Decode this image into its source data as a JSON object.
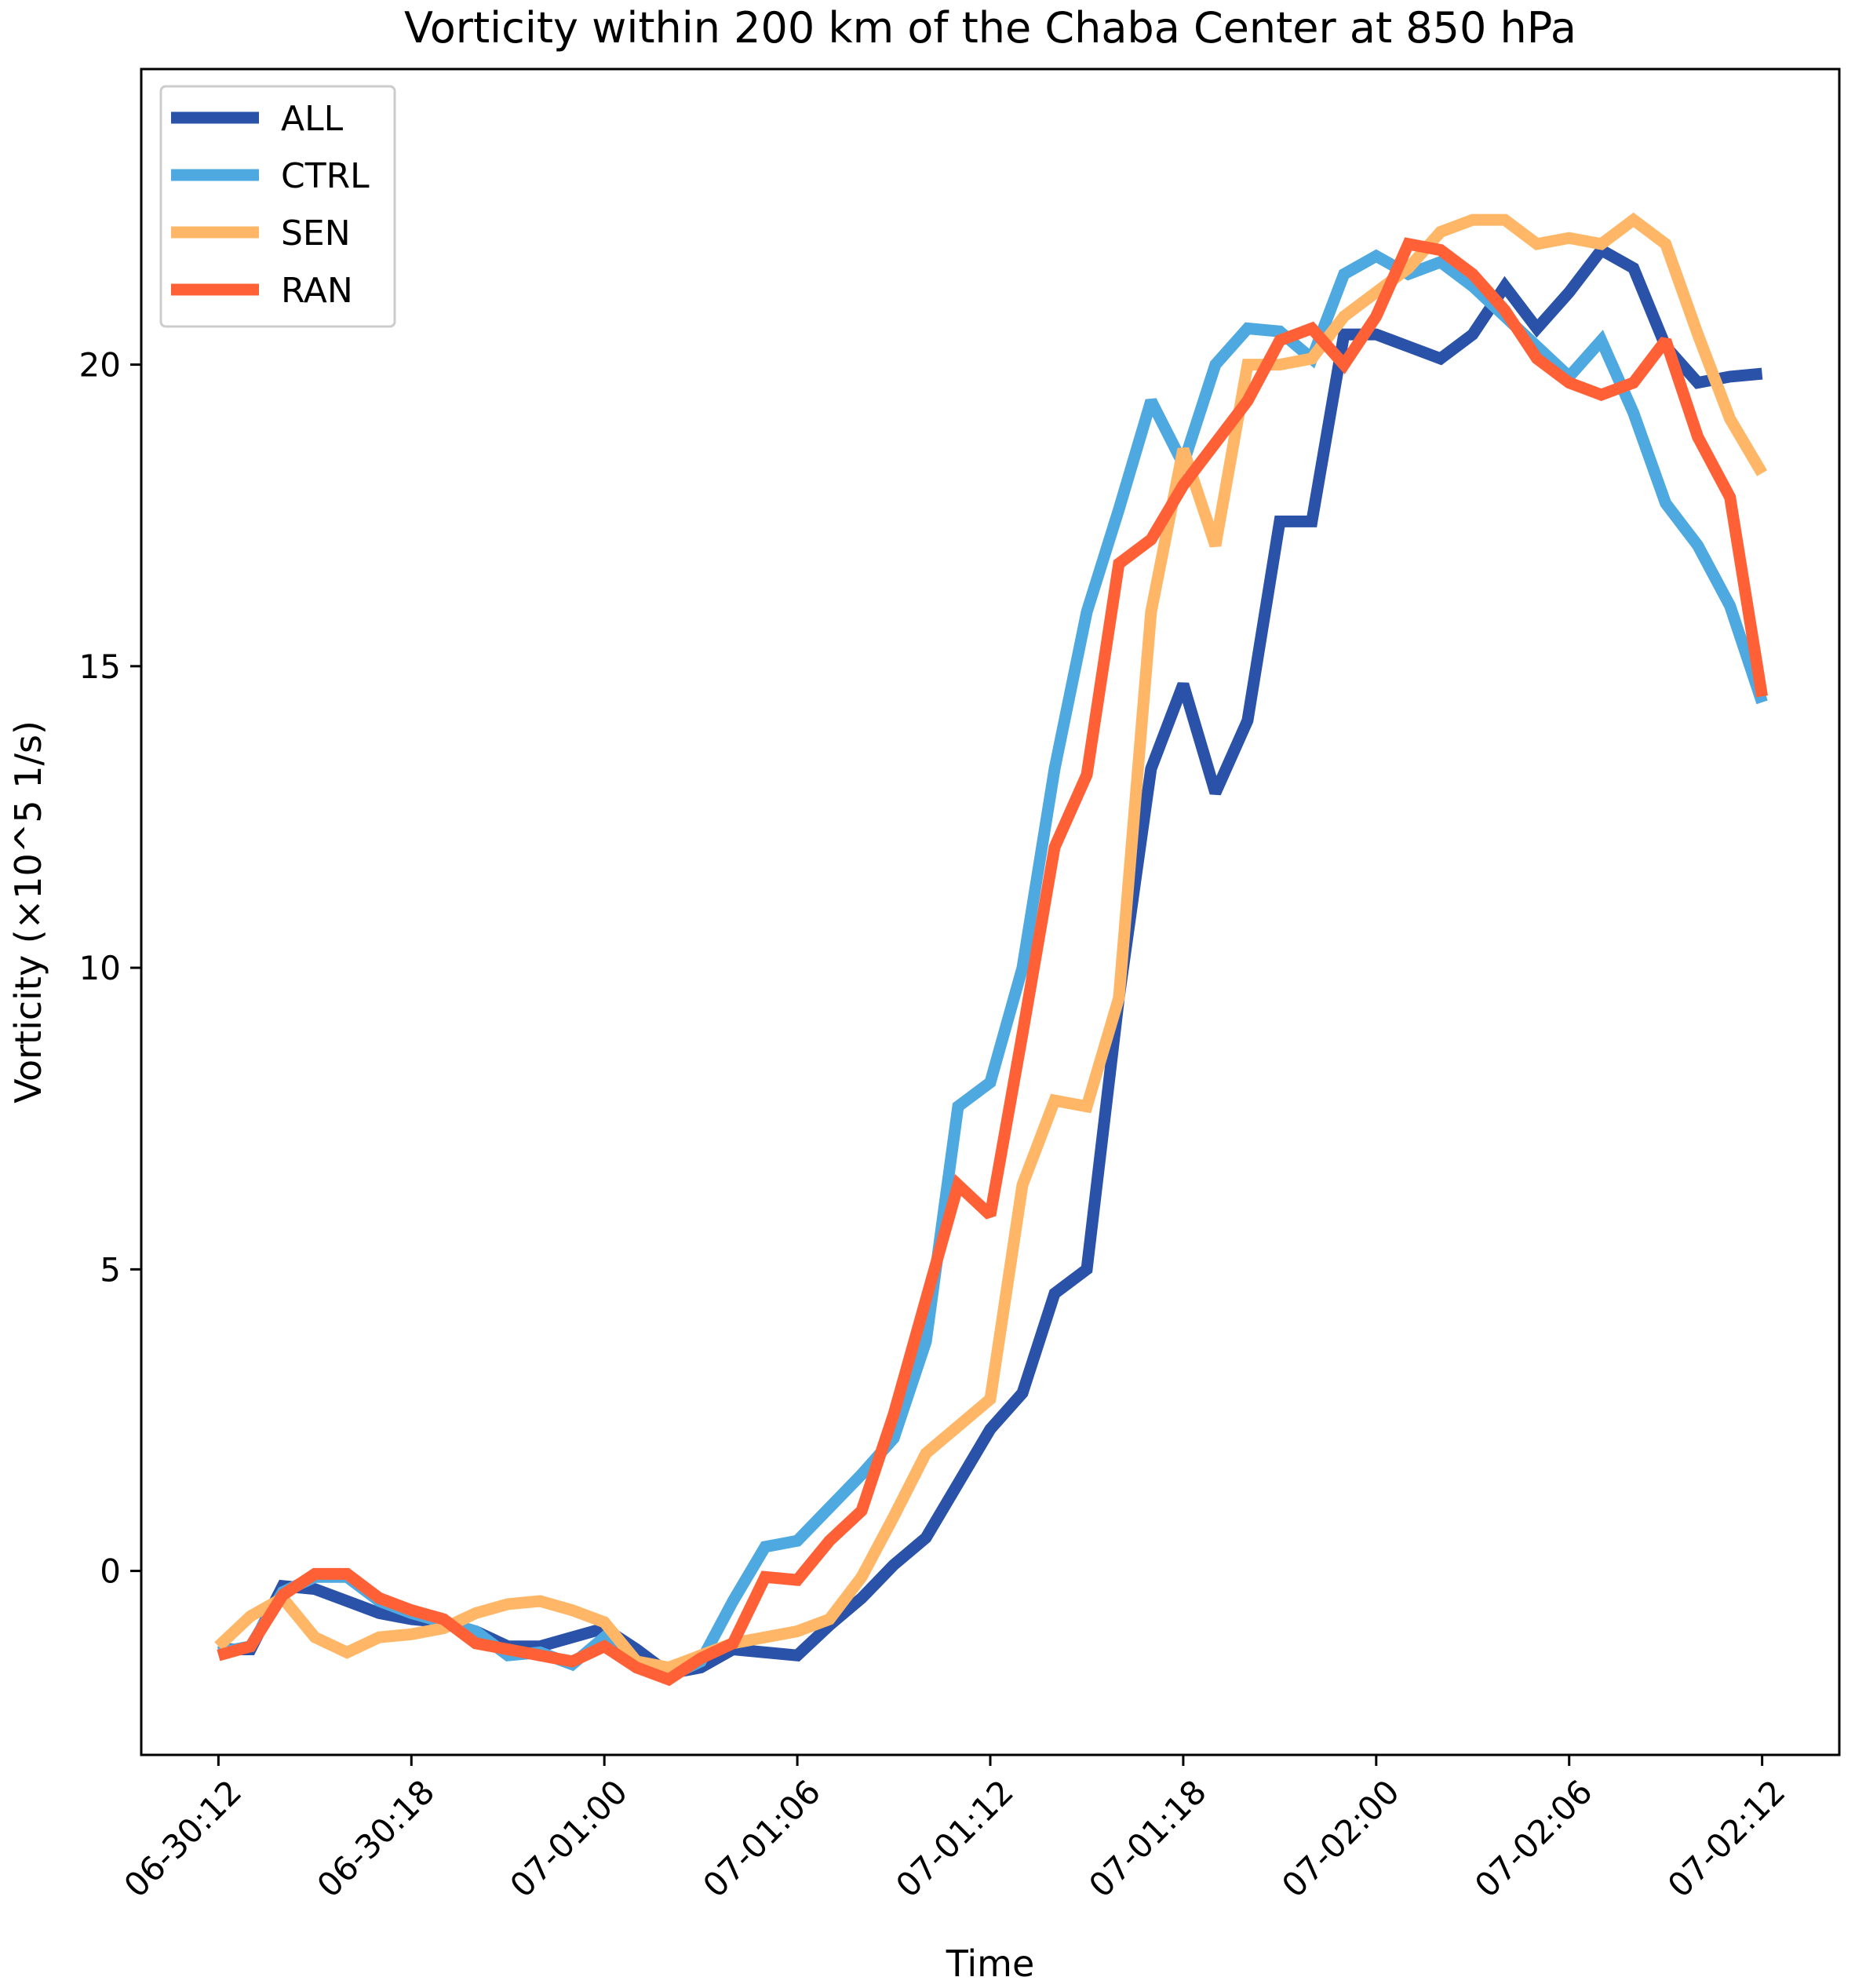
{
  "chart_data": {
    "type": "line",
    "title": "Vorticity within 200 km of the Chaba Center at 850 hPa",
    "xlabel": "Time",
    "ylabel": "Vorticity (×10^5 1/s)",
    "x_unit": "hours since 06-30:12",
    "x_tick_values": [
      0,
      6,
      12,
      18,
      24,
      30,
      36,
      42,
      48
    ],
    "x_tick_labels": [
      "06-30:12",
      "06-30:18",
      "07-01:00",
      "07-01:06",
      "07-01:12",
      "07-01:18",
      "07-02:00",
      "07-02:06",
      "07-02:12"
    ],
    "y_ticks": [
      0,
      5,
      10,
      15,
      20
    ],
    "xlim": [
      -2.4,
      50.4
    ],
    "ylim": [
      -3.05,
      24.9
    ],
    "legend_position": "top-left",
    "x": [
      0,
      1,
      2,
      3,
      4,
      5,
      6,
      7,
      8,
      9,
      10,
      11,
      12,
      13,
      14,
      15,
      16,
      17,
      18,
      19,
      20,
      21,
      22,
      23,
      24,
      25,
      26,
      27,
      28,
      29,
      30,
      31,
      32,
      33,
      34,
      35,
      36,
      37,
      38,
      39,
      40,
      41,
      42,
      43,
      44,
      45,
      46,
      47,
      48
    ],
    "series": [
      {
        "name": "ALL",
        "color": "#2a52a8",
        "values": [
          -1.3,
          -1.3,
          -0.25,
          -0.3,
          -0.5,
          -0.7,
          -0.8,
          -0.85,
          -1.0,
          -1.25,
          -1.25,
          -1.1,
          -0.95,
          -1.3,
          -1.7,
          -1.6,
          -1.3,
          -1.35,
          -1.4,
          -0.9,
          -0.45,
          0.1,
          0.55,
          1.45,
          2.35,
          2.95,
          4.6,
          5.0,
          9.5,
          13.3,
          14.7,
          12.9,
          14.1,
          17.4,
          17.4,
          20.5,
          20.5,
          20.3,
          20.1,
          20.5,
          21.3,
          20.6,
          21.2,
          21.9,
          21.6,
          20.3,
          19.7,
          19.8,
          19.85
        ]
      },
      {
        "name": "CTRL",
        "color": "#4ea9e0",
        "values": [
          -1.35,
          -1.25,
          -0.35,
          -0.1,
          -0.1,
          -0.5,
          -0.7,
          -0.85,
          -1.0,
          -1.4,
          -1.35,
          -1.55,
          -1.1,
          -1.6,
          -1.75,
          -1.5,
          -0.5,
          0.4,
          0.5,
          1.05,
          1.6,
          2.2,
          3.8,
          7.7,
          8.1,
          10.0,
          13.3,
          15.9,
          17.6,
          19.4,
          18.35,
          20.0,
          20.6,
          20.55,
          20.1,
          21.5,
          21.8,
          21.5,
          21.7,
          21.3,
          20.8,
          20.3,
          19.8,
          20.4,
          19.2,
          17.7,
          17.0,
          16.0,
          14.4
        ]
      },
      {
        "name": "SEN",
        "color": "#ffb767",
        "values": [
          -1.25,
          -0.75,
          -0.45,
          -1.1,
          -1.35,
          -1.1,
          -1.05,
          -0.95,
          -0.7,
          -0.55,
          -0.5,
          -0.65,
          -0.85,
          -1.5,
          -1.6,
          -1.4,
          -1.2,
          -1.1,
          -1.0,
          -0.8,
          -0.1,
          0.9,
          1.95,
          2.4,
          2.85,
          6.4,
          7.8,
          7.7,
          9.5,
          15.9,
          18.6,
          17.0,
          20.0,
          20.0,
          20.1,
          20.8,
          21.2,
          21.6,
          22.2,
          22.4,
          22.4,
          22.0,
          22.1,
          22.0,
          22.4,
          22.0,
          20.5,
          19.1,
          18.2
        ]
      },
      {
        "name": "RAN",
        "color": "#ff6035",
        "values": [
          -1.4,
          -1.25,
          -0.4,
          -0.05,
          -0.05,
          -0.45,
          -0.65,
          -0.8,
          -1.2,
          -1.3,
          -1.4,
          -1.5,
          -1.25,
          -1.6,
          -1.8,
          -1.45,
          -1.2,
          -0.1,
          -0.15,
          0.5,
          1.0,
          2.6,
          4.5,
          6.4,
          5.9,
          8.9,
          12.0,
          13.2,
          16.7,
          17.1,
          18.0,
          18.7,
          19.4,
          20.4,
          20.6,
          20.0,
          20.8,
          22.0,
          21.9,
          21.5,
          20.9,
          20.1,
          19.7,
          19.5,
          19.7,
          20.4,
          18.8,
          17.8,
          14.5
        ]
      }
    ]
  }
}
